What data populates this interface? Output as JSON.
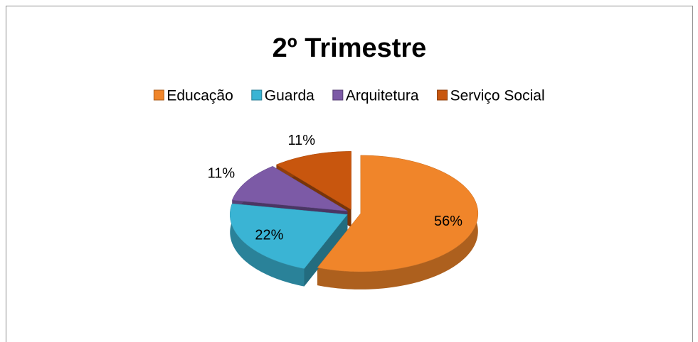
{
  "chart_data": {
    "type": "pie3d",
    "title": "2º Trimestre",
    "categories": [
      "Educação",
      "Guarda",
      "Arquitetura",
      "Serviço Social"
    ],
    "values": [
      56,
      22,
      11,
      11
    ],
    "value_labels": [
      "56%",
      "22%",
      "11%",
      "11%"
    ],
    "colors": [
      "#f0852a",
      "#3ab4d4",
      "#7c5aa6",
      "#c8560e"
    ],
    "legend": "top"
  }
}
